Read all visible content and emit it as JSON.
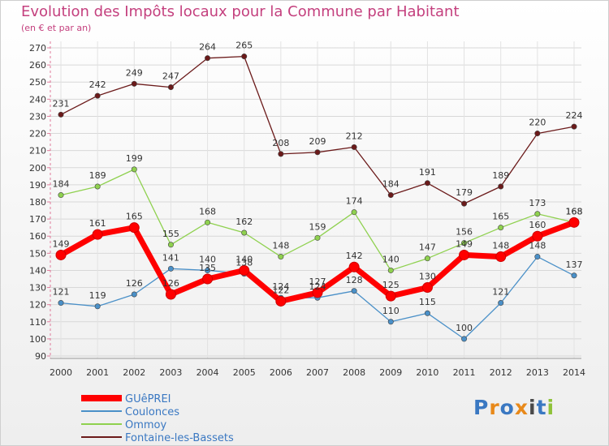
{
  "chart_data": {
    "type": "line",
    "title": "Evolution des Impôts locaux pour la Commune par Habitant",
    "subtitle": "(en € et par an)",
    "x": [
      "2000",
      "2001",
      "2002",
      "2003",
      "2004",
      "2005",
      "2006",
      "2007",
      "2008",
      "2009",
      "2010",
      "2011",
      "2012",
      "2013",
      "2014"
    ],
    "yticks": [
      90,
      100,
      110,
      120,
      130,
      140,
      150,
      160,
      170,
      180,
      190,
      200,
      210,
      220,
      230,
      240,
      250,
      260,
      270
    ],
    "ylim": [
      90,
      270
    ],
    "grid": true,
    "legend_position": "bottom-left",
    "series": [
      {
        "name": "GUêPREI",
        "color": "#ff0000",
        "values": [
          149,
          161,
          165,
          126,
          135,
          140,
          122,
          127,
          142,
          125,
          130,
          149,
          148,
          160,
          168
        ]
      },
      {
        "name": "Coulonces",
        "color": "#4a90c8",
        "values": [
          121,
          119,
          126,
          141,
          140,
          138,
          124,
          124,
          128,
          110,
          115,
          100,
          121,
          148,
          137
        ]
      },
      {
        "name": "Ommoy",
        "color": "#8fd14f",
        "values": [
          184,
          189,
          199,
          155,
          168,
          162,
          148,
          159,
          174,
          140,
          147,
          156,
          165,
          173,
          168
        ]
      },
      {
        "name": "Fontaine-les-Bassets",
        "color": "#6b1a1a",
        "values": [
          231,
          242,
          249,
          247,
          264,
          265,
          208,
          209,
          212,
          184,
          191,
          179,
          189,
          220,
          224
        ]
      }
    ],
    "data_labels": [
      {
        "series": "GUêPREI",
        "labels": [
          "149",
          "161",
          "165",
          "126",
          "135",
          "140",
          "122",
          "127",
          "142",
          "125",
          "130",
          "149",
          "148",
          "160",
          "168"
        ]
      },
      {
        "series": "Coulonces",
        "labels": [
          "121",
          "119",
          "126",
          "141",
          "140",
          "138",
          "124",
          "124",
          "128",
          "110",
          "115",
          "100",
          "121",
          "148",
          "137"
        ]
      },
      {
        "series": "Ommoy",
        "labels": [
          "184",
          "189",
          "199",
          "155",
          "168",
          "162",
          "148",
          "159",
          "174",
          "140",
          "147",
          "156",
          "165",
          "173",
          "168"
        ]
      },
      {
        "series": "Fontaine-les-Bassets",
        "labels": [
          "231",
          "242",
          "249",
          "247",
          "264",
          "265",
          "208",
          "209",
          "212",
          "184",
          "191",
          "179",
          "189",
          "220",
          "224"
        ]
      }
    ]
  },
  "logo": {
    "text": "Proxiti",
    "letters": [
      "P",
      "r",
      "o",
      "x",
      "i",
      "t",
      "i"
    ],
    "colors": [
      "#3a78c2",
      "#e8891a",
      "#3a78c2",
      "#e8891a",
      "#4a4a4a",
      "#3a78c2",
      "#8fc23a"
    ]
  }
}
